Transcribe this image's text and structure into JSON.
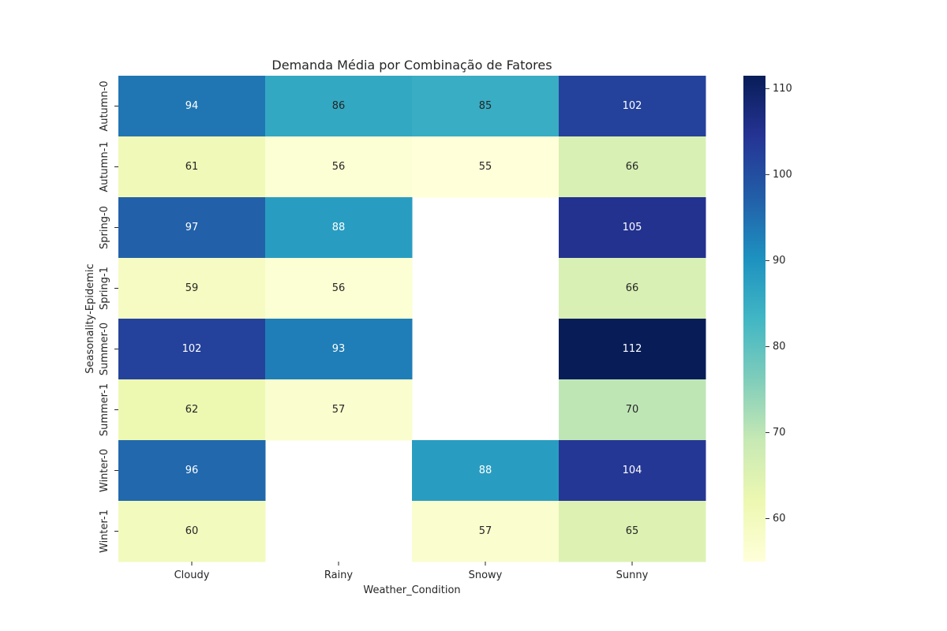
{
  "chart_data": {
    "type": "heatmap",
    "title": "Demanda Média por Combinação de Fatores",
    "xlabel": "Weather_Condition",
    "ylabel": "Seasonality-Epidemic",
    "x_categories": [
      "Cloudy",
      "Rainy",
      "Snowy",
      "Sunny"
    ],
    "y_categories": [
      "Autumn-0",
      "Autumn-1",
      "Spring-0",
      "Spring-1",
      "Summer-0",
      "Summer-1",
      "Winter-0",
      "Winter-1"
    ],
    "values": [
      [
        94,
        86,
        85,
        102
      ],
      [
        61,
        56,
        55,
        66
      ],
      [
        97,
        88,
        null,
        105
      ],
      [
        59,
        56,
        null,
        66
      ],
      [
        102,
        93,
        null,
        112
      ],
      [
        62,
        57,
        null,
        70
      ],
      [
        96,
        null,
        88,
        104
      ],
      [
        60,
        null,
        57,
        65
      ]
    ],
    "colorbar": {
      "min": 55,
      "max": 111.5,
      "ticks": [
        60,
        70,
        80,
        90,
        100,
        110
      ],
      "colormap": "YlGnBu"
    },
    "grid": false,
    "legend": "colorbar-right"
  }
}
